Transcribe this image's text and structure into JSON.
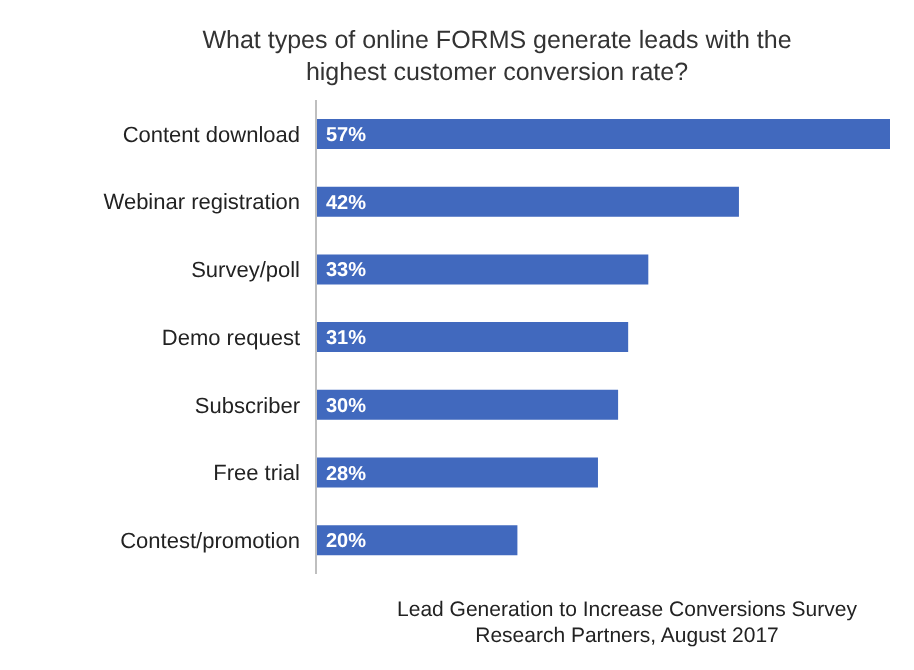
{
  "chart_data": {
    "type": "bar",
    "orientation": "horizontal",
    "title": "What types of online FORMS generate leads with the highest customer conversion rate?",
    "categories": [
      "Content download",
      "Webinar registration",
      "Survey/poll",
      "Demo request",
      "Subscriber",
      "Free trial",
      "Contest/promotion"
    ],
    "values": [
      57,
      42,
      33,
      31,
      30,
      28,
      20
    ],
    "value_labels": [
      "57%",
      "42%",
      "33%",
      "31%",
      "30%",
      "28%",
      "20%"
    ],
    "color": "#4169be",
    "annotations": [
      "Lead Generation to Increase Conversions Survey",
      "Research Partners, August 2017"
    ],
    "legend": false,
    "grid": false
  }
}
